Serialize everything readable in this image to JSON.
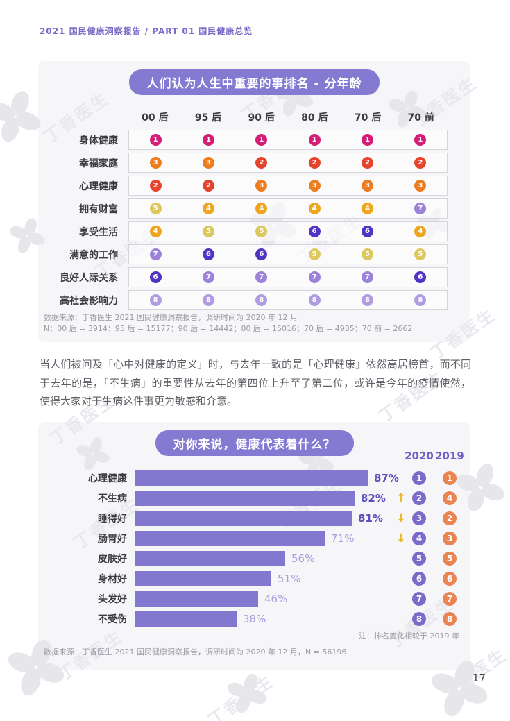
{
  "page": {
    "header": "2021 国民健康洞察报告 / PART 01 国民健康总览",
    "page_number": "17",
    "watermark_text": "丁香医生"
  },
  "colors": {
    "accent_purple": "#857ad2",
    "panel_bg": "#f6f5f8",
    "rank_colors": [
      "#d41d76",
      "#e6432c",
      "#ee7d1f",
      "#efa51d",
      "#dcc95e",
      "#5134c4",
      "#9c82d8",
      "#b09ce0"
    ],
    "bar_fill": "#8378cf",
    "circle_2020": "#7b6ac8",
    "circle_2019": "#ea8450",
    "trend_arrow": "#ecb82d"
  },
  "chart_data": [
    {
      "type": "table",
      "title": "人们认为人生中重要的事排名 - 分年龄",
      "columns": [
        "00 后",
        "95 后",
        "90 后",
        "80 后",
        "70 后",
        "70 前"
      ],
      "rows": [
        "身体健康",
        "幸福家庭",
        "心理健康",
        "拥有财富",
        "享受生活",
        "满意的工作",
        "良好人际关系",
        "高社会影响力"
      ],
      "values": [
        [
          1,
          1,
          1,
          1,
          1,
          1
        ],
        [
          3,
          3,
          2,
          2,
          2,
          2
        ],
        [
          2,
          2,
          3,
          3,
          3,
          3
        ],
        [
          5,
          4,
          4,
          4,
          4,
          7
        ],
        [
          4,
          5,
          5,
          6,
          6,
          4
        ],
        [
          7,
          6,
          6,
          5,
          5,
          5
        ],
        [
          6,
          7,
          7,
          7,
          7,
          6
        ],
        [
          8,
          8,
          8,
          8,
          8,
          8
        ]
      ],
      "source_line1": "数据来源：丁香医生 2021 国民健康洞察报告，调研时间为 2020 年 12 月",
      "source_line2": "N：00 后 = 3914；95 后 = 15177；90 后 = 14442；80 后 = 15016；70 后 = 4985；70 前 = 2662"
    },
    {
      "type": "bar",
      "orientation": "horizontal",
      "title": "对你来说，健康代表着什么？",
      "categories": [
        "心理健康",
        "不生病",
        "睡得好",
        "肠胃好",
        "皮肤好",
        "身材好",
        "头发好",
        "不受伤"
      ],
      "values": [
        87,
        82,
        81,
        71,
        56,
        51,
        46,
        38
      ],
      "value_labels": [
        "87%",
        "82%",
        "81%",
        "71%",
        "56%",
        "51%",
        "46%",
        "38%"
      ],
      "value_emphasis": [
        true,
        true,
        true,
        false,
        false,
        false,
        false,
        false
      ],
      "legend": [
        "2020",
        "2019"
      ],
      "rank_2020": [
        1,
        2,
        3,
        4,
        5,
        6,
        7,
        8
      ],
      "rank_2019": [
        1,
        4,
        2,
        3,
        5,
        6,
        7,
        8
      ],
      "trend": [
        "",
        "up",
        "down",
        "down",
        "",
        "",
        "",
        ""
      ],
      "xlim": [
        0,
        100
      ],
      "note": "注：排名变化相较于 2019 年",
      "source": "数据来源：丁香医生 2021 国民健康洞察报告，调研时间为 2020 年 12 月，N = 56196"
    }
  ],
  "paragraph": "当人们被问及「心中对健康的定义」时，与去年一致的是「心理健康」依然高居榜首，而不同于去年的是，「不生病」的重要性从去年的第四位上升至了第二位，或许是今年的疫情使然，使得大家对于生病这件事更为敏感和介意。"
}
